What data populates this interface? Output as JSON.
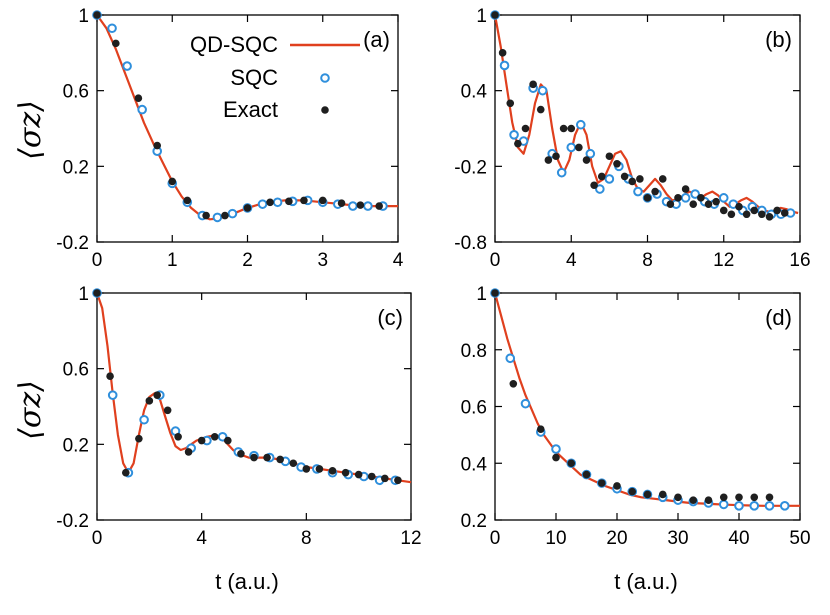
{
  "colors": {
    "qd_sqc_line": "#e0401e",
    "sqc_marker": "#2f8fdc",
    "exact_marker": "#1f1f1f",
    "axes": "#000000"
  },
  "figure": {
    "y_axis_label": "⟨σz⟩",
    "x_axis_label": "t (a.u.)"
  },
  "legend": {
    "placement": "panel-a-top-right",
    "entries": [
      {
        "label": "QD-SQC",
        "style": "line",
        "color": "#e0401e"
      },
      {
        "label": "SQC",
        "style": "open-circle",
        "color": "#2f8fdc"
      },
      {
        "label": "Exact",
        "style": "filled-circle",
        "color": "#1f1f1f"
      }
    ]
  },
  "chart_data": [
    {
      "panel": "(a)",
      "type": "line",
      "xlim": [
        0,
        4
      ],
      "ylim": [
        -0.2,
        1
      ],
      "xticks": [
        0,
        1,
        2,
        3,
        4
      ],
      "xtick_labels": [
        "0",
        "1",
        "2",
        "3",
        "4"
      ],
      "yticks": [
        -0.2,
        0.2,
        0.6,
        1
      ],
      "ytick_labels": [
        "-0.2",
        "0.2",
        "0.6",
        "1"
      ],
      "series": [
        {
          "name": "QD-SQC",
          "kind": "line",
          "x": [
            0,
            0.125,
            0.25,
            0.375,
            0.5,
            0.625,
            0.75,
            0.875,
            1.0,
            1.125,
            1.25,
            1.375,
            1.5,
            1.625,
            1.75,
            1.875,
            2.0,
            2.125,
            2.25,
            2.375,
            2.5,
            2.625,
            2.75,
            2.875,
            3.0,
            3.125,
            3.25,
            3.375,
            3.5,
            3.625,
            3.75,
            3.875,
            4.0
          ],
          "y": [
            1.0,
            0.93,
            0.82,
            0.69,
            0.56,
            0.43,
            0.32,
            0.22,
            0.12,
            0.04,
            -0.02,
            -0.06,
            -0.08,
            -0.075,
            -0.06,
            -0.04,
            -0.02,
            -0.005,
            0.01,
            0.015,
            0.02,
            0.02,
            0.02,
            0.015,
            0.01,
            0.005,
            0.0,
            -0.005,
            -0.005,
            -0.01,
            -0.01,
            -0.01,
            -0.01
          ]
        },
        {
          "name": "SQC",
          "kind": "open-marker",
          "x": [
            0.0,
            0.2,
            0.4,
            0.6,
            0.8,
            1.0,
            1.2,
            1.4,
            1.6,
            1.8,
            2.0,
            2.2,
            2.4,
            2.6,
            2.8,
            3.0,
            3.2,
            3.4,
            3.6,
            3.8
          ],
          "y": [
            1.0,
            0.93,
            0.73,
            0.5,
            0.28,
            0.11,
            0.01,
            -0.06,
            -0.07,
            -0.05,
            -0.02,
            0.0,
            0.01,
            0.015,
            0.02,
            0.01,
            0.0,
            -0.01,
            -0.01,
            -0.01
          ]
        },
        {
          "name": "Exact",
          "kind": "filled-marker",
          "x": [
            0.0,
            0.25,
            0.55,
            0.8,
            1.0,
            1.2,
            1.45,
            1.7,
            2.0,
            2.3,
            2.55,
            2.75,
            3.0,
            3.25,
            3.5,
            3.75
          ],
          "y": [
            1.0,
            0.85,
            0.56,
            0.31,
            0.12,
            0.02,
            -0.06,
            -0.06,
            -0.02,
            0.01,
            0.015,
            0.02,
            0.02,
            0.005,
            -0.005,
            -0.01
          ]
        }
      ]
    },
    {
      "panel": "(b)",
      "type": "line",
      "xlim": [
        0,
        16
      ],
      "ylim": [
        -0.8,
        1
      ],
      "xticks": [
        0,
        4,
        8,
        12,
        16
      ],
      "xtick_labels": [
        "0",
        "4",
        "8",
        "12",
        "16"
      ],
      "yticks": [
        -0.8,
        -0.2,
        0.4,
        1
      ],
      "ytick_labels": [
        "-0.8",
        "-0.2",
        "0.4",
        "1"
      ],
      "series": [
        {
          "name": "QD-SQC",
          "kind": "line",
          "x": [
            0,
            0.3,
            0.6,
            0.9,
            1.2,
            1.5,
            1.8,
            2.1,
            2.4,
            2.7,
            3.0,
            3.3,
            3.6,
            3.9,
            4.2,
            4.5,
            4.8,
            5.1,
            5.4,
            5.7,
            6.0,
            6.3,
            6.6,
            6.9,
            7.2,
            7.5,
            7.8,
            8.1,
            8.4,
            8.7,
            9.0,
            9.3,
            9.6,
            9.9,
            10.2,
            10.5,
            10.8,
            11.1,
            11.4,
            11.7,
            12.0,
            12.3,
            12.6,
            12.9,
            13.2,
            13.5,
            13.8,
            14.1,
            14.4,
            14.7,
            15.0,
            15.3,
            15.6,
            15.9
          ],
          "y": [
            1.0,
            0.75,
            0.45,
            0.15,
            -0.05,
            -0.1,
            0.05,
            0.3,
            0.45,
            0.4,
            0.1,
            -0.15,
            -0.25,
            -0.15,
            0.05,
            0.15,
            0.05,
            -0.2,
            -0.33,
            -0.3,
            -0.2,
            -0.1,
            -0.08,
            -0.15,
            -0.3,
            -0.38,
            -0.4,
            -0.35,
            -0.3,
            -0.35,
            -0.42,
            -0.47,
            -0.46,
            -0.43,
            -0.4,
            -0.42,
            -0.45,
            -0.42,
            -0.4,
            -0.43,
            -0.48,
            -0.52,
            -0.5,
            -0.47,
            -0.45,
            -0.48,
            -0.52,
            -0.55,
            -0.56,
            -0.55,
            -0.53,
            -0.54,
            -0.56,
            -0.57
          ]
        },
        {
          "name": "SQC",
          "kind": "open-marker",
          "x": [
            0.0,
            0.5,
            1.0,
            1.5,
            2.0,
            2.5,
            3.0,
            3.5,
            4.0,
            4.5,
            5.0,
            5.5,
            6.0,
            6.5,
            7.0,
            7.5,
            8.0,
            8.5,
            9.0,
            9.5,
            10.0,
            10.5,
            11.0,
            11.5,
            12.0,
            12.5,
            13.0,
            13.5,
            14.0,
            14.5,
            15.0,
            15.5
          ],
          "y": [
            1.0,
            0.6,
            0.05,
            0.0,
            0.42,
            0.4,
            -0.1,
            -0.25,
            -0.05,
            0.13,
            -0.1,
            -0.38,
            -0.3,
            -0.2,
            -0.3,
            -0.4,
            -0.45,
            -0.42,
            -0.48,
            -0.5,
            -0.45,
            -0.42,
            -0.48,
            -0.5,
            -0.45,
            -0.5,
            -0.55,
            -0.52,
            -0.55,
            -0.58,
            -0.58,
            -0.57
          ]
        },
        {
          "name": "Exact",
          "kind": "filled-marker",
          "x": [
            0.0,
            0.4,
            0.8,
            1.2,
            1.6,
            2.0,
            2.4,
            2.8,
            3.2,
            3.6,
            4.0,
            4.4,
            4.8,
            5.2,
            5.6,
            6.0,
            6.4,
            6.8,
            7.2,
            7.6,
            8.0,
            8.4,
            8.8,
            9.2,
            9.6,
            10.0,
            10.4,
            10.8,
            11.2,
            11.6,
            12.0,
            12.4,
            12.8,
            13.2,
            13.6,
            14.0,
            14.4,
            14.8,
            15.2
          ],
          "y": [
            1.0,
            0.7,
            0.3,
            -0.02,
            0.1,
            0.45,
            0.25,
            -0.15,
            -0.12,
            0.1,
            0.1,
            -0.05,
            -0.15,
            -0.35,
            -0.28,
            -0.12,
            -0.18,
            -0.28,
            -0.32,
            -0.3,
            -0.45,
            -0.4,
            -0.3,
            -0.5,
            -0.45,
            -0.38,
            -0.5,
            -0.45,
            -0.5,
            -0.48,
            -0.55,
            -0.58,
            -0.52,
            -0.58,
            -0.55,
            -0.58,
            -0.6,
            -0.55,
            -0.57
          ]
        }
      ]
    },
    {
      "panel": "(c)",
      "type": "line",
      "xlim": [
        0,
        12
      ],
      "ylim": [
        -0.2,
        1
      ],
      "xticks": [
        0,
        4,
        8,
        12
      ],
      "xtick_labels": [
        "0",
        "4",
        "8",
        "12"
      ],
      "yticks": [
        -0.2,
        0.2,
        0.6,
        1
      ],
      "ytick_labels": [
        "-0.2",
        "0.2",
        "0.6",
        "1"
      ],
      "series": [
        {
          "name": "QD-SQC",
          "kind": "line",
          "x": [
            0,
            0.2,
            0.4,
            0.6,
            0.8,
            1.0,
            1.2,
            1.4,
            1.6,
            1.8,
            2.0,
            2.2,
            2.4,
            2.6,
            2.8,
            3.0,
            3.2,
            3.4,
            3.6,
            3.8,
            4.0,
            4.2,
            4.4,
            4.6,
            4.8,
            5.0,
            5.2,
            5.4,
            5.6,
            5.8,
            6.0,
            6.5,
            7.0,
            7.5,
            8.0,
            8.5,
            9.0,
            9.5,
            10.0,
            10.5,
            11.0,
            11.5,
            12.0
          ],
          "y": [
            1.0,
            0.92,
            0.72,
            0.47,
            0.25,
            0.1,
            0.05,
            0.1,
            0.25,
            0.38,
            0.45,
            0.47,
            0.44,
            0.35,
            0.26,
            0.19,
            0.17,
            0.18,
            0.2,
            0.22,
            0.23,
            0.24,
            0.245,
            0.24,
            0.23,
            0.2,
            0.17,
            0.15,
            0.14,
            0.13,
            0.13,
            0.13,
            0.12,
            0.1,
            0.08,
            0.07,
            0.06,
            0.05,
            0.04,
            0.03,
            0.02,
            0.01,
            0.0
          ]
        },
        {
          "name": "SQC",
          "kind": "open-marker",
          "x": [
            0.0,
            0.6,
            1.2,
            1.8,
            2.4,
            3.0,
            3.6,
            4.2,
            4.8,
            5.4,
            6.0,
            6.6,
            7.2,
            7.8,
            8.4,
            9.0,
            9.6,
            10.2,
            10.8,
            11.4
          ],
          "y": [
            1.0,
            0.46,
            0.05,
            0.33,
            0.46,
            0.27,
            0.18,
            0.22,
            0.24,
            0.16,
            0.14,
            0.13,
            0.11,
            0.08,
            0.07,
            0.05,
            0.04,
            0.03,
            0.01,
            0.01
          ]
        },
        {
          "name": "Exact",
          "kind": "filled-marker",
          "x": [
            0.0,
            0.5,
            1.1,
            1.6,
            2.0,
            2.3,
            2.7,
            3.1,
            3.5,
            4.0,
            4.5,
            5.0,
            5.5,
            6.0,
            6.5,
            7.0,
            7.5,
            8.0,
            8.5,
            9.0,
            9.5,
            10.0,
            10.5,
            11.0,
            11.5
          ],
          "y": [
            1.0,
            0.56,
            0.05,
            0.23,
            0.43,
            0.46,
            0.38,
            0.24,
            0.16,
            0.22,
            0.24,
            0.22,
            0.15,
            0.13,
            0.13,
            0.12,
            0.1,
            0.07,
            0.07,
            0.06,
            0.05,
            0.04,
            0.03,
            0.02,
            0.01
          ]
        }
      ]
    },
    {
      "panel": "(d)",
      "type": "line",
      "xlim": [
        0,
        50
      ],
      "ylim": [
        0.2,
        1
      ],
      "xticks": [
        0,
        10,
        20,
        30,
        40,
        50
      ],
      "xtick_labels": [
        "0",
        "10",
        "20",
        "30",
        "40",
        "50"
      ],
      "yticks": [
        0.2,
        0.4,
        0.6,
        0.8,
        1
      ],
      "ytick_labels": [
        "0.2",
        "0.4",
        "0.6",
        "0.8",
        "1"
      ],
      "series": [
        {
          "name": "QD-SQC",
          "kind": "line",
          "x": [
            0,
            1,
            2,
            3,
            4,
            5,
            6,
            7,
            8,
            9,
            10,
            12,
            14,
            16,
            18,
            20,
            22,
            24,
            26,
            28,
            30,
            32,
            34,
            36,
            38,
            40,
            42,
            44,
            46,
            48,
            50
          ],
          "y": [
            1.0,
            0.92,
            0.84,
            0.77,
            0.7,
            0.64,
            0.59,
            0.54,
            0.5,
            0.47,
            0.44,
            0.4,
            0.36,
            0.34,
            0.32,
            0.305,
            0.29,
            0.28,
            0.275,
            0.27,
            0.265,
            0.26,
            0.258,
            0.256,
            0.254,
            0.252,
            0.251,
            0.25,
            0.25,
            0.25,
            0.25
          ]
        },
        {
          "name": "SQC",
          "kind": "open-marker",
          "x": [
            0.0,
            2.5,
            5.0,
            7.5,
            10.0,
            12.5,
            15.0,
            17.5,
            20.0,
            22.5,
            25.0,
            27.5,
            30.0,
            32.5,
            35.0,
            37.5,
            40.0,
            42.5,
            45.0,
            47.5
          ],
          "y": [
            1.0,
            0.77,
            0.61,
            0.51,
            0.45,
            0.4,
            0.36,
            0.33,
            0.31,
            0.3,
            0.29,
            0.28,
            0.27,
            0.265,
            0.26,
            0.255,
            0.25,
            0.25,
            0.25,
            0.25
          ]
        },
        {
          "name": "Exact",
          "kind": "filled-marker",
          "x": [
            0.0,
            3.0,
            7.5,
            10.0,
            12.5,
            15.0,
            17.5,
            20.0,
            22.5,
            25.0,
            27.5,
            30.0,
            32.5,
            35.0,
            37.5,
            40.0,
            42.5,
            45.0
          ],
          "y": [
            1.0,
            0.68,
            0.52,
            0.42,
            0.4,
            0.36,
            0.33,
            0.32,
            0.3,
            0.29,
            0.29,
            0.28,
            0.27,
            0.27,
            0.28,
            0.28,
            0.28,
            0.28
          ]
        }
      ]
    }
  ]
}
